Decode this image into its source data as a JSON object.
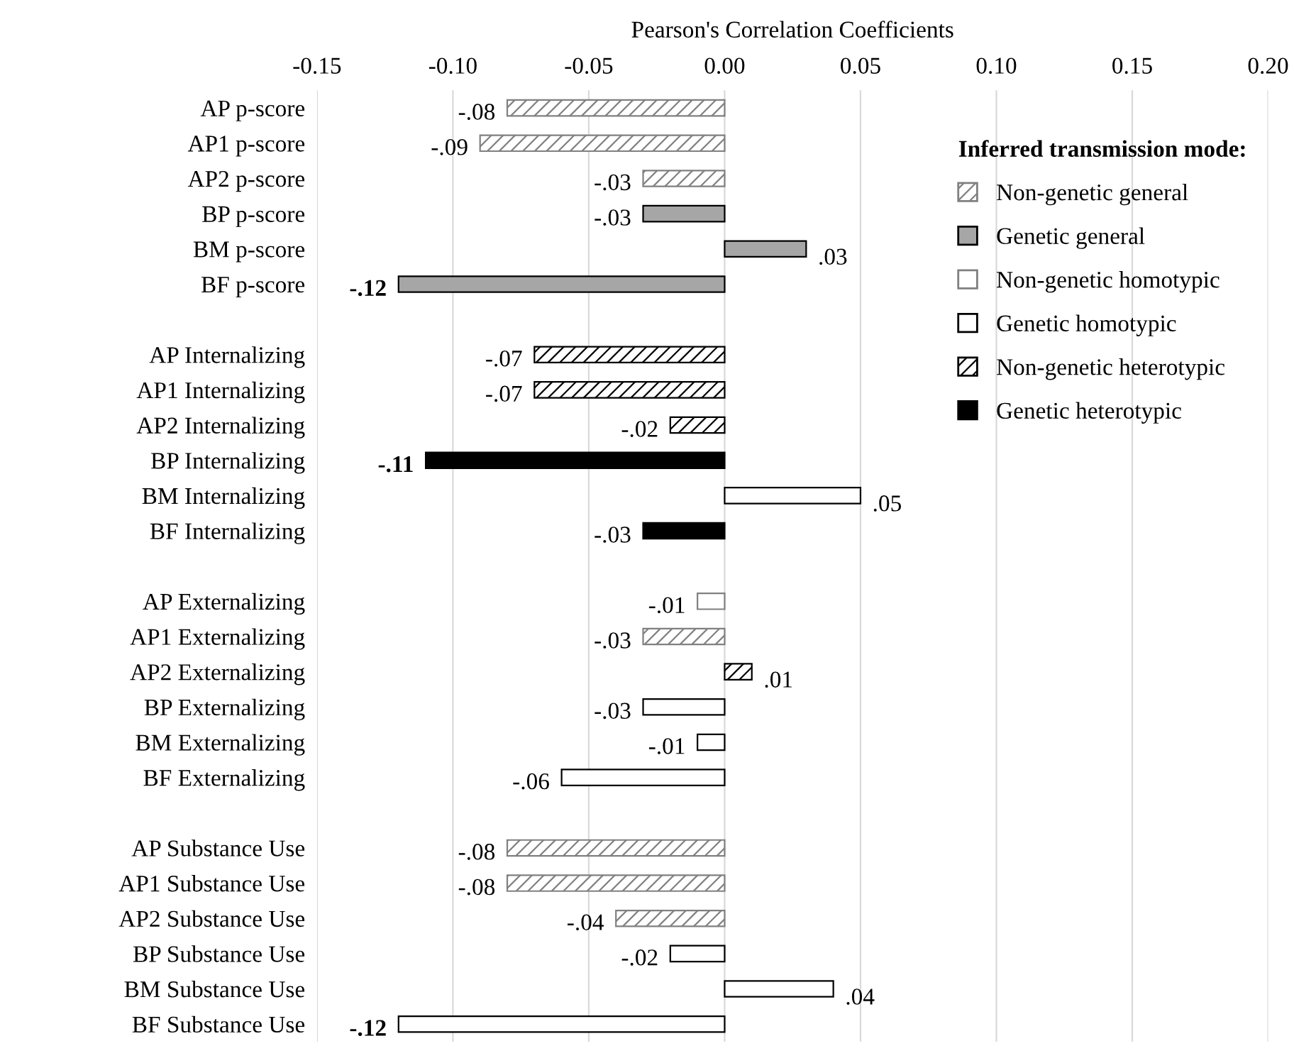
{
  "chart_data": {
    "type": "bar",
    "orientation": "horizontal",
    "xlabel": "Pearson's Correlation Coefficients",
    "categories": [
      "AP p-score",
      "AP1 p-score",
      "AP2 p-score",
      "BP p-score",
      "BM p-score",
      "BF p-score",
      null,
      "AP Internalizing",
      "AP1 Internalizing",
      "AP2 Internalizing",
      "BP Internalizing",
      "BM Internalizing",
      "BF Internalizing",
      null,
      "AP Externalizing",
      "AP1 Externalizing",
      "AP2 Externalizing",
      "BP Externalizing",
      "BM Externalizing",
      "BF Externalizing",
      null,
      "AP Substance Use",
      "AP1 Substance Use",
      "AP2 Substance Use",
      "BP Substance Use",
      "BM Substance Use",
      "BF Substance Use"
    ],
    "series": [
      {
        "name": "Non-genetic general",
        "color": "#808080",
        "values": [
          -0.08,
          -0.09,
          -0.03,
          null,
          null,
          null,
          null,
          null,
          null,
          null,
          null,
          null,
          null,
          null,
          null,
          -0.03,
          null,
          null,
          null,
          null,
          null,
          -0.08,
          -0.08,
          -0.04,
          null,
          null,
          null
        ]
      },
      {
        "name": "Genetic general",
        "color": "#a6a6a6",
        "values": [
          null,
          null,
          null,
          -0.03,
          0.03,
          -0.12,
          null,
          null,
          null,
          null,
          null,
          null,
          null,
          null,
          null,
          null,
          null,
          null,
          null,
          null,
          null,
          null,
          null,
          null,
          null,
          null,
          null
        ]
      },
      {
        "name": "Non-genetic homotypic",
        "color": "#ffffff",
        "values": [
          null,
          null,
          null,
          null,
          null,
          null,
          null,
          null,
          null,
          null,
          null,
          null,
          null,
          null,
          -0.01,
          null,
          null,
          null,
          null,
          null,
          null,
          null,
          null,
          null,
          null,
          null,
          null
        ]
      },
      {
        "name": "Genetic homotypic",
        "color": "#ffffff",
        "values": [
          null,
          null,
          null,
          null,
          null,
          null,
          null,
          null,
          null,
          null,
          null,
          0.05,
          null,
          null,
          null,
          null,
          null,
          -0.03,
          -0.01,
          -0.06,
          null,
          null,
          null,
          null,
          -0.02,
          0.04,
          -0.12
        ]
      },
      {
        "name": "Non-genetic heterotypic",
        "color": "#000000",
        "values": [
          null,
          null,
          null,
          null,
          null,
          null,
          null,
          -0.07,
          -0.07,
          -0.02,
          null,
          null,
          null,
          null,
          null,
          null,
          0.01,
          null,
          null,
          null,
          null,
          null,
          null,
          null,
          null,
          null,
          null
        ]
      },
      {
        "name": "Genetic heterotypic",
        "color": "#000000",
        "values": [
          null,
          null,
          null,
          null,
          null,
          null,
          null,
          null,
          null,
          null,
          -0.11,
          null,
          -0.03,
          null,
          null,
          null,
          null,
          null,
          null,
          null,
          null,
          null,
          null,
          null,
          null,
          null,
          null
        ]
      }
    ],
    "value_labels": [
      "-.08",
      "-.09",
      "-.03",
      "-.03",
      ".03",
      "-.12",
      null,
      "-.07",
      "-.07",
      "-.02",
      "-.11",
      ".05",
      "-.03",
      null,
      "-.01",
      "-.03",
      ".01",
      "-.03",
      "-.01",
      "-.06",
      null,
      "-.08",
      "-.08",
      "-.04",
      "-.02",
      ".04",
      "-.12"
    ],
    "xlim": [
      -0.15,
      0.2
    ],
    "xticks": [
      {
        "value": -0.15,
        "label": "-0.15"
      },
      {
        "value": -0.1,
        "label": "-0.10"
      },
      {
        "value": -0.05,
        "label": "-0.05"
      },
      {
        "value": 0,
        "label": "0.00"
      },
      {
        "value": 0.05,
        "label": "0.05"
      },
      {
        "value": 0.1,
        "label": "0.10"
      },
      {
        "value": 0.15,
        "label": "0.15"
      },
      {
        "value": 0.2,
        "label": "0.20"
      }
    ],
    "grid": "x",
    "legend": "top right",
    "legend_title": "Inferred transmission mode:"
  }
}
